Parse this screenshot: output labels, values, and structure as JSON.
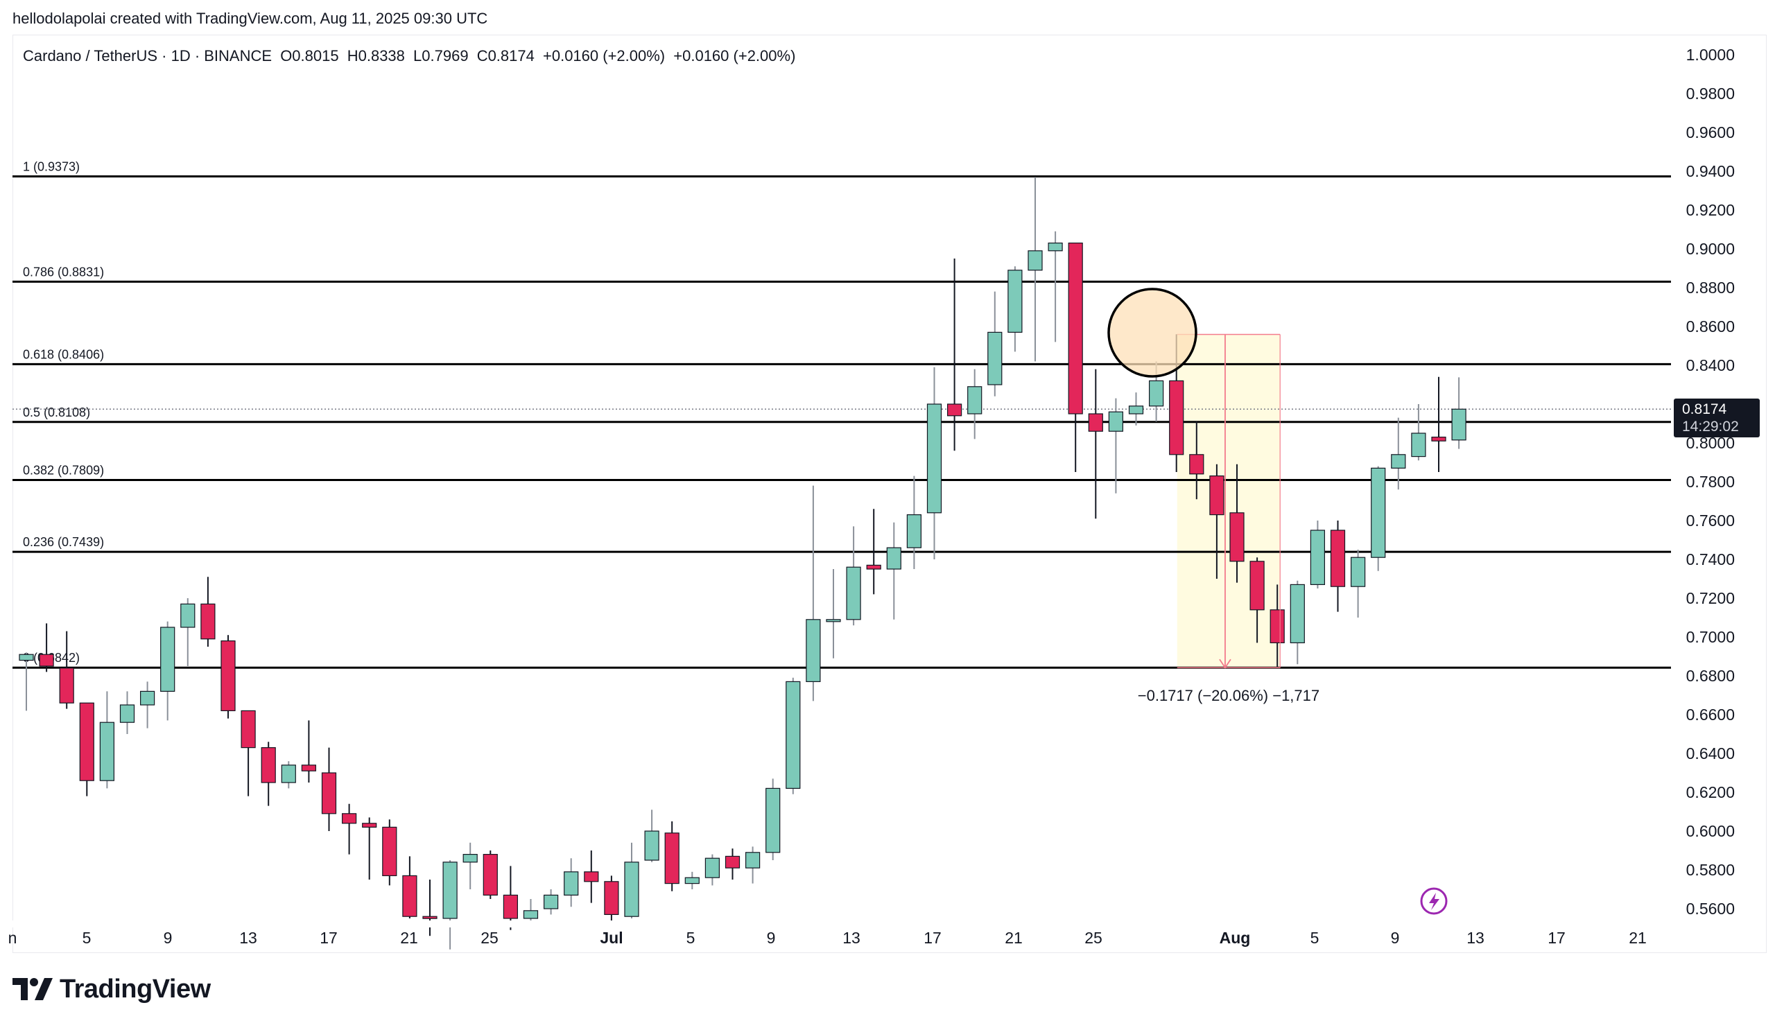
{
  "caption": "hellodolapolai created with TradingView.com, Aug 11, 2025 09:30 UTC",
  "header": {
    "symbol": "Cardano / TetherUS · 1D · BINANCE",
    "open": "O0.8015",
    "high": "H0.8338",
    "low": "L0.7969",
    "close": "C0.8174",
    "change1": "+0.0160 (+2.00%)",
    "change2": "+0.0160 (+2.00%)"
  },
  "last_price": {
    "value": "0.8174",
    "countdown": "14:29:02"
  },
  "brand": "TradingView",
  "colors": {
    "up": "#7dcab9",
    "down": "#e3265a",
    "fib_line": "#000000",
    "highlight_circle": "#fde0b8",
    "range_fill": "#fffbe0",
    "range_line": "#f37b8c"
  },
  "measure_label": "−0.1717 (−20.06%) −1,717",
  "chart_data": {
    "type": "candlestick",
    "ylim": [
      0.55,
      1.0
    ],
    "y_ticks": [
      "1.0000",
      "0.9800",
      "0.9600",
      "0.9400",
      "0.9200",
      "0.9000",
      "0.8800",
      "0.8600",
      "0.8400",
      "0.8200",
      "0.8000",
      "0.7800",
      "0.7600",
      "0.7400",
      "0.7200",
      "0.7000",
      "0.6800",
      "0.6600",
      "0.6400",
      "0.6200",
      "0.6000",
      "0.5800",
      "0.5600"
    ],
    "x_ticks": [
      "n",
      "5",
      "9",
      "13",
      "17",
      "21",
      "25",
      "Jul",
      "5",
      "9",
      "13",
      "17",
      "21",
      "25",
      "Aug",
      "5",
      "9",
      "13",
      "17",
      "21"
    ],
    "fib_levels": [
      {
        "label": "1 (0.9373)",
        "value": 0.9373
      },
      {
        "label": "0.786 (0.8831)",
        "value": 0.8831
      },
      {
        "label": "0.618 (0.8406)",
        "value": 0.8406
      },
      {
        "label": "0.5 (0.8108)",
        "value": 0.8108
      },
      {
        "label": "0.382 (0.7809)",
        "value": 0.7809
      },
      {
        "label": "0.236 (0.7439)",
        "value": 0.7439
      },
      {
        "label": "0 (0.6842)",
        "value": 0.6842
      }
    ],
    "candles": [
      {
        "date": "Jun 1",
        "o": 0.688,
        "h": 0.692,
        "l": 0.662,
        "c": 0.691
      },
      {
        "date": "Jun 2",
        "o": 0.691,
        "h": 0.707,
        "l": 0.682,
        "c": 0.685
      },
      {
        "date": "Jun 3",
        "o": 0.684,
        "h": 0.703,
        "l": 0.663,
        "c": 0.666
      },
      {
        "date": "Jun 4",
        "o": 0.666,
        "h": 0.666,
        "l": 0.618,
        "c": 0.626
      },
      {
        "date": "Jun 5",
        "o": 0.626,
        "h": 0.672,
        "l": 0.622,
        "c": 0.656
      },
      {
        "date": "Jun 6",
        "o": 0.656,
        "h": 0.672,
        "l": 0.65,
        "c": 0.665
      },
      {
        "date": "Jun 7",
        "o": 0.665,
        "h": 0.677,
        "l": 0.653,
        "c": 0.672
      },
      {
        "date": "Jun 8",
        "o": 0.672,
        "h": 0.708,
        "l": 0.657,
        "c": 0.705
      },
      {
        "date": "Jun 9",
        "o": 0.705,
        "h": 0.72,
        "l": 0.685,
        "c": 0.717
      },
      {
        "date": "Jun 10",
        "o": 0.717,
        "h": 0.731,
        "l": 0.695,
        "c": 0.699
      },
      {
        "date": "Jun 11",
        "o": 0.698,
        "h": 0.701,
        "l": 0.658,
        "c": 0.662
      },
      {
        "date": "Jun 12",
        "o": 0.662,
        "h": 0.662,
        "l": 0.618,
        "c": 0.643
      },
      {
        "date": "Jun 13",
        "o": 0.643,
        "h": 0.646,
        "l": 0.613,
        "c": 0.625
      },
      {
        "date": "Jun 14",
        "o": 0.625,
        "h": 0.636,
        "l": 0.622,
        "c": 0.634
      },
      {
        "date": "Jun 15",
        "o": 0.634,
        "h": 0.657,
        "l": 0.625,
        "c": 0.631
      },
      {
        "date": "Jun 16",
        "o": 0.63,
        "h": 0.643,
        "l": 0.6,
        "c": 0.609
      },
      {
        "date": "Jun 17",
        "o": 0.609,
        "h": 0.614,
        "l": 0.588,
        "c": 0.604
      },
      {
        "date": "Jun 18",
        "o": 0.604,
        "h": 0.607,
        "l": 0.575,
        "c": 0.602
      },
      {
        "date": "Jun 19",
        "o": 0.602,
        "h": 0.606,
        "l": 0.572,
        "c": 0.577
      },
      {
        "date": "Jun 20",
        "o": 0.577,
        "h": 0.587,
        "l": 0.555,
        "c": 0.556
      },
      {
        "date": "Jun 21",
        "o": 0.556,
        "h": 0.575,
        "l": 0.546,
        "c": 0.555
      },
      {
        "date": "Jun 22",
        "o": 0.555,
        "h": 0.585,
        "l": 0.539,
        "c": 0.584
      },
      {
        "date": "Jun 23",
        "o": 0.584,
        "h": 0.594,
        "l": 0.57,
        "c": 0.588
      },
      {
        "date": "Jun 24",
        "o": 0.588,
        "h": 0.59,
        "l": 0.565,
        "c": 0.567
      },
      {
        "date": "Jun 25",
        "o": 0.567,
        "h": 0.582,
        "l": 0.549,
        "c": 0.555
      },
      {
        "date": "Jun 26",
        "o": 0.555,
        "h": 0.565,
        "l": 0.551,
        "c": 0.559
      },
      {
        "date": "Jun 27",
        "o": 0.56,
        "h": 0.57,
        "l": 0.557,
        "c": 0.567
      },
      {
        "date": "Jun 28",
        "o": 0.567,
        "h": 0.586,
        "l": 0.561,
        "c": 0.579
      },
      {
        "date": "Jun 29",
        "o": 0.579,
        "h": 0.59,
        "l": 0.563,
        "c": 0.574
      },
      {
        "date": "Jun 30",
        "o": 0.574,
        "h": 0.577,
        "l": 0.552,
        "c": 0.557
      },
      {
        "date": "Jul 1",
        "o": 0.556,
        "h": 0.594,
        "l": 0.555,
        "c": 0.584
      },
      {
        "date": "Jul 2",
        "o": 0.585,
        "h": 0.611,
        "l": 0.584,
        "c": 0.6
      },
      {
        "date": "Jul 3",
        "o": 0.599,
        "h": 0.605,
        "l": 0.569,
        "c": 0.573
      },
      {
        "date": "Jul 4",
        "o": 0.573,
        "h": 0.579,
        "l": 0.57,
        "c": 0.576
      },
      {
        "date": "Jul 5",
        "o": 0.576,
        "h": 0.588,
        "l": 0.572,
        "c": 0.586
      },
      {
        "date": "Jul 6",
        "o": 0.587,
        "h": 0.591,
        "l": 0.575,
        "c": 0.581
      },
      {
        "date": "Jul 7",
        "o": 0.581,
        "h": 0.592,
        "l": 0.573,
        "c": 0.589
      },
      {
        "date": "Jul 8",
        "o": 0.589,
        "h": 0.627,
        "l": 0.585,
        "c": 0.622
      },
      {
        "date": "Jul 9",
        "o": 0.622,
        "h": 0.679,
        "l": 0.619,
        "c": 0.677
      },
      {
        "date": "Jul 10",
        "o": 0.677,
        "h": 0.778,
        "l": 0.667,
        "c": 0.709
      },
      {
        "date": "Jul 11",
        "o": 0.709,
        "h": 0.735,
        "l": 0.689,
        "c": 0.709
      },
      {
        "date": "Jul 12",
        "o": 0.709,
        "h": 0.757,
        "l": 0.706,
        "c": 0.736
      },
      {
        "date": "Jul 13",
        "o": 0.737,
        "h": 0.766,
        "l": 0.722,
        "c": 0.735
      },
      {
        "date": "Jul 14",
        "o": 0.735,
        "h": 0.759,
        "l": 0.709,
        "c": 0.746
      },
      {
        "date": "Jul 15",
        "o": 0.746,
        "h": 0.783,
        "l": 0.735,
        "c": 0.763
      },
      {
        "date": "Jul 16",
        "o": 0.764,
        "h": 0.839,
        "l": 0.74,
        "c": 0.82
      },
      {
        "date": "Jul 17",
        "o": 0.82,
        "h": 0.895,
        "l": 0.796,
        "c": 0.814
      },
      {
        "date": "Jul 18",
        "o": 0.815,
        "h": 0.838,
        "l": 0.802,
        "c": 0.829
      },
      {
        "date": "Jul 19",
        "o": 0.83,
        "h": 0.878,
        "l": 0.824,
        "c": 0.857
      },
      {
        "date": "Jul 20",
        "o": 0.857,
        "h": 0.891,
        "l": 0.847,
        "c": 0.889
      },
      {
        "date": "Jul 21",
        "o": 0.889,
        "h": 0.937,
        "l": 0.842,
        "c": 0.899
      },
      {
        "date": "Jul 22",
        "o": 0.899,
        "h": 0.909,
        "l": 0.852,
        "c": 0.903
      },
      {
        "date": "Jul 23",
        "o": 0.903,
        "h": 0.903,
        "l": 0.785,
        "c": 0.815
      },
      {
        "date": "Jul 24",
        "o": 0.815,
        "h": 0.838,
        "l": 0.761,
        "c": 0.806
      },
      {
        "date": "Jul 25",
        "o": 0.806,
        "h": 0.823,
        "l": 0.774,
        "c": 0.816
      },
      {
        "date": "Jul 26",
        "o": 0.815,
        "h": 0.826,
        "l": 0.809,
        "c": 0.819
      },
      {
        "date": "Jul 27",
        "o": 0.819,
        "h": 0.842,
        "l": 0.811,
        "c": 0.832
      },
      {
        "date": "Jul 28",
        "o": 0.832,
        "h": 0.856,
        "l": 0.785,
        "c": 0.794
      },
      {
        "date": "Jul 29",
        "o": 0.794,
        "h": 0.811,
        "l": 0.771,
        "c": 0.784
      },
      {
        "date": "Jul 30",
        "o": 0.783,
        "h": 0.789,
        "l": 0.73,
        "c": 0.763
      },
      {
        "date": "Jul 31",
        "o": 0.764,
        "h": 0.789,
        "l": 0.728,
        "c": 0.739
      },
      {
        "date": "Aug 1",
        "o": 0.739,
        "h": 0.741,
        "l": 0.697,
        "c": 0.714
      },
      {
        "date": "Aug 2",
        "o": 0.714,
        "h": 0.727,
        "l": 0.684,
        "c": 0.697
      },
      {
        "date": "Aug 3",
        "o": 0.697,
        "h": 0.729,
        "l": 0.686,
        "c": 0.727
      },
      {
        "date": "Aug 4",
        "o": 0.727,
        "h": 0.76,
        "l": 0.725,
        "c": 0.755
      },
      {
        "date": "Aug 5",
        "o": 0.755,
        "h": 0.76,
        "l": 0.713,
        "c": 0.726
      },
      {
        "date": "Aug 6",
        "o": 0.726,
        "h": 0.745,
        "l": 0.71,
        "c": 0.741
      },
      {
        "date": "Aug 7",
        "o": 0.741,
        "h": 0.788,
        "l": 0.734,
        "c": 0.787
      },
      {
        "date": "Aug 8",
        "o": 0.787,
        "h": 0.813,
        "l": 0.776,
        "c": 0.794
      },
      {
        "date": "Aug 9",
        "o": 0.793,
        "h": 0.82,
        "l": 0.791,
        "c": 0.805
      },
      {
        "date": "Aug 10",
        "o": 0.803,
        "h": 0.834,
        "l": 0.785,
        "c": 0.801
      },
      {
        "date": "Aug 11",
        "o": 0.8015,
        "h": 0.8338,
        "l": 0.7969,
        "c": 0.8174
      }
    ],
    "measure": {
      "from_date": "Jul 28",
      "to_date": "Aug 2",
      "from_price": 0.8559,
      "to_price": 0.6842
    }
  }
}
